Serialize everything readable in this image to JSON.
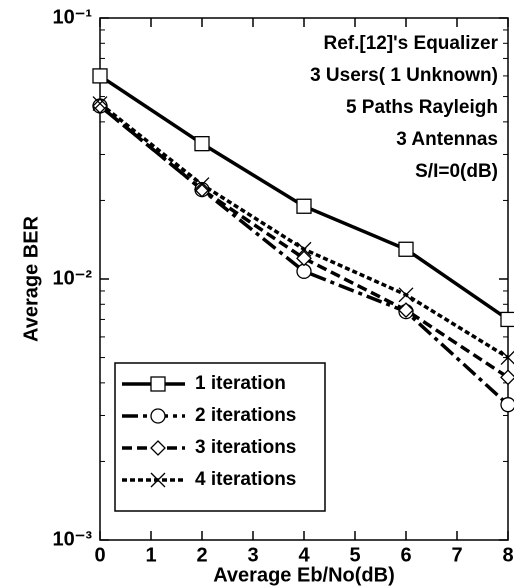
{
  "chart_data": {
    "type": "line",
    "x_label": "Average Eb/No(dB)",
    "y_label": "Average BER",
    "annotations": [
      "Ref.[12]'s Equalizer",
      "3 Users( 1 Unknown)",
      "5 Paths Rayleigh",
      "3 Antennas",
      "S/I=0(dB)"
    ],
    "x": [
      0,
      2,
      4,
      6,
      8
    ],
    "series": [
      {
        "name": "1 iteration",
        "color": "#000000",
        "dash": "solid",
        "marker": "square",
        "values": [
          0.06,
          0.033,
          0.019,
          0.013,
          0.007
        ]
      },
      {
        "name": "2 iterations",
        "color": "#000000",
        "dash": "dashdot",
        "marker": "circle",
        "values": [
          0.046,
          0.022,
          0.0107,
          0.0075,
          0.0033
        ]
      },
      {
        "name": "3 iterations",
        "color": "#000000",
        "dash": "dashed",
        "marker": "diamond",
        "values": [
          0.046,
          0.022,
          0.012,
          0.0076,
          0.0042
        ]
      },
      {
        "name": "4 iterations",
        "color": "#000000",
        "dash": "dotted",
        "marker": "x",
        "values": [
          0.047,
          0.023,
          0.013,
          0.0087,
          0.005
        ]
      }
    ],
    "xlim": [
      0,
      8
    ],
    "xticks": [
      0,
      1,
      2,
      3,
      4,
      5,
      6,
      7,
      8
    ],
    "ylim": [
      0.001,
      0.1
    ],
    "log_y": true,
    "yticks": [
      {
        "value": 0.001,
        "label": "10⁻³"
      },
      {
        "value": 0.01,
        "label": "10⁻²"
      },
      {
        "value": 0.1,
        "label": "10⁻¹"
      }
    ],
    "legend": "lower left"
  }
}
